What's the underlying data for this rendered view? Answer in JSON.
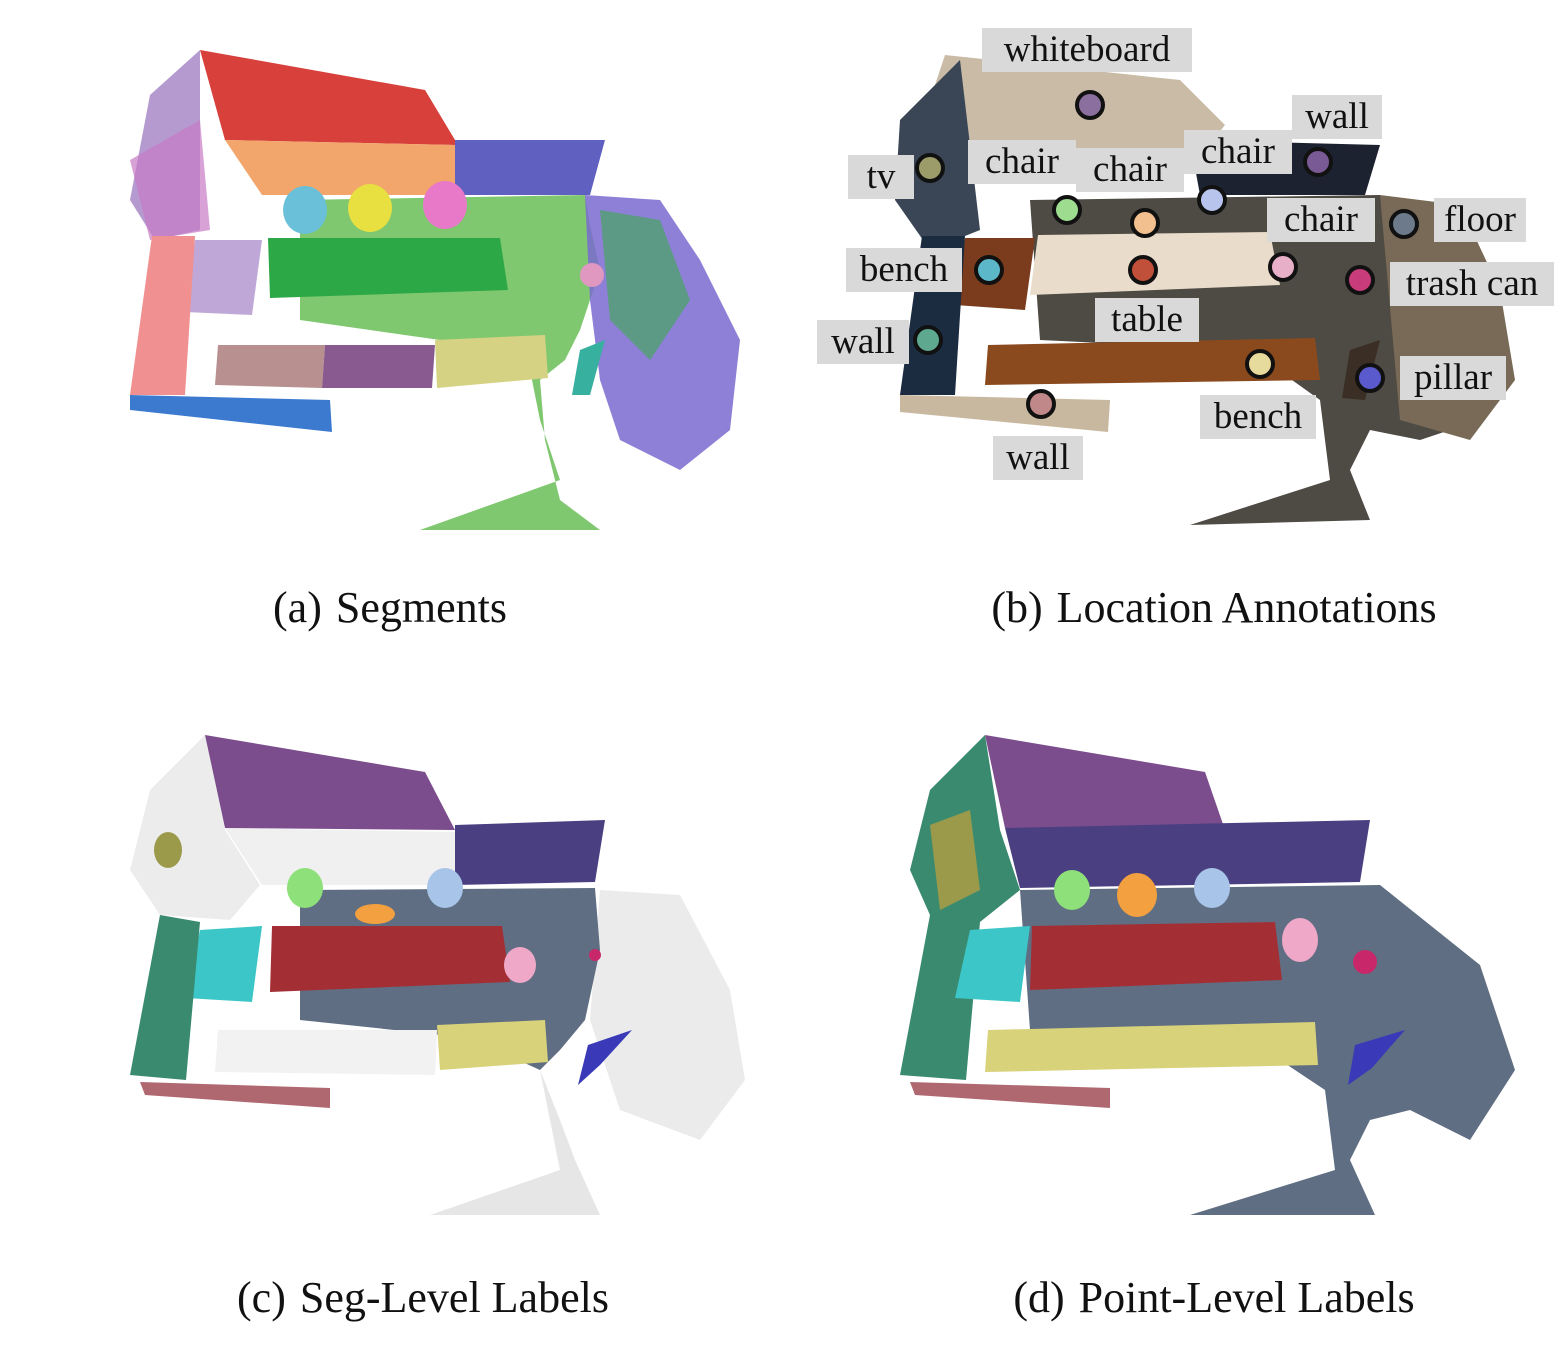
{
  "figure": {
    "panels": [
      {
        "tag": "(a)",
        "title": "Segments"
      },
      {
        "tag": "(b)",
        "title": "Location Annotations"
      },
      {
        "tag": "(c)",
        "title": "Seg-Level Labels"
      },
      {
        "tag": "(d)",
        "title": "Point-Level Labels"
      }
    ],
    "annotations": [
      {
        "label": "whiteboard",
        "color": "#8b6f9e"
      },
      {
        "label": "wall",
        "color": "#7a5a94"
      },
      {
        "label": "tv",
        "color": "#9c9c6a"
      },
      {
        "label": "chair",
        "color": "#9edc90"
      },
      {
        "label": "chair",
        "color": "#f2c08e"
      },
      {
        "label": "chair",
        "color": "#b8c4ec"
      },
      {
        "label": "chair",
        "color": "#e8b0c8"
      },
      {
        "label": "floor",
        "color": "#6c7a8c"
      },
      {
        "label": "bench",
        "color": "#5cb8c8"
      },
      {
        "label": "table",
        "color": "#c0503a"
      },
      {
        "label": "trash can",
        "color": "#c83c7c"
      },
      {
        "label": "wall",
        "color": "#5ea890"
      },
      {
        "label": "pillar",
        "color": "#5a5acc"
      },
      {
        "label": "bench",
        "color": "#e6da9c"
      },
      {
        "label": "wall",
        "color": "#c08888"
      }
    ],
    "colors": {
      "wall_purple": "#7b4d8c",
      "wall_slate": "#4a3f80",
      "floor": "#5f6e82",
      "table": "#a32f35",
      "bench_cyan": "#3cc6c8",
      "bench_yellow": "#d8d27a",
      "wall_teal": "#3a8a70",
      "tv_olive": "#9a9a4a",
      "wall_rose": "#b06870",
      "pillar": "#3a3ab8",
      "chair_green": "#8ee07a",
      "chair_orange": "#f2a040",
      "chair_blue": "#a8c4e8",
      "chair_pink": "#f0a8c8",
      "trash_can": "#c8286a"
    }
  }
}
